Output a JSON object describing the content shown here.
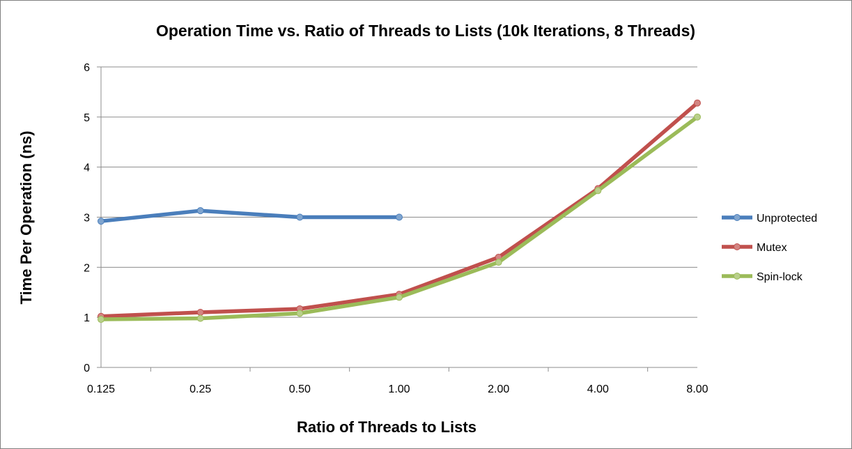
{
  "chart_data": {
    "type": "line",
    "title": "Operation Time vs. Ratio of Threads to Lists (10k Iterations, 8 Threads)",
    "xlabel": "Ratio of Threads to Lists",
    "ylabel": "Time Per Operation (ns)",
    "categories": [
      "0.125",
      "0.25",
      "0.50",
      "1.00",
      "2.00",
      "4.00",
      "8.00"
    ],
    "yticks": [
      "0",
      "1",
      "2",
      "3",
      "4",
      "5",
      "6"
    ],
    "ylim": [
      0,
      6
    ],
    "grid": true,
    "legend_position": "right",
    "series": [
      {
        "name": "Unprotected",
        "color": "#4a7ebb",
        "values": [
          2.92,
          3.13,
          3.0,
          3.0,
          null,
          null,
          null
        ]
      },
      {
        "name": "Mutex",
        "color": "#c0504d",
        "values": [
          1.02,
          1.1,
          1.17,
          1.46,
          2.2,
          3.57,
          5.28
        ]
      },
      {
        "name": "Spin-lock",
        "color": "#9bbb59",
        "values": [
          0.96,
          0.98,
          1.08,
          1.4,
          2.1,
          3.53,
          5.0
        ]
      }
    ]
  }
}
